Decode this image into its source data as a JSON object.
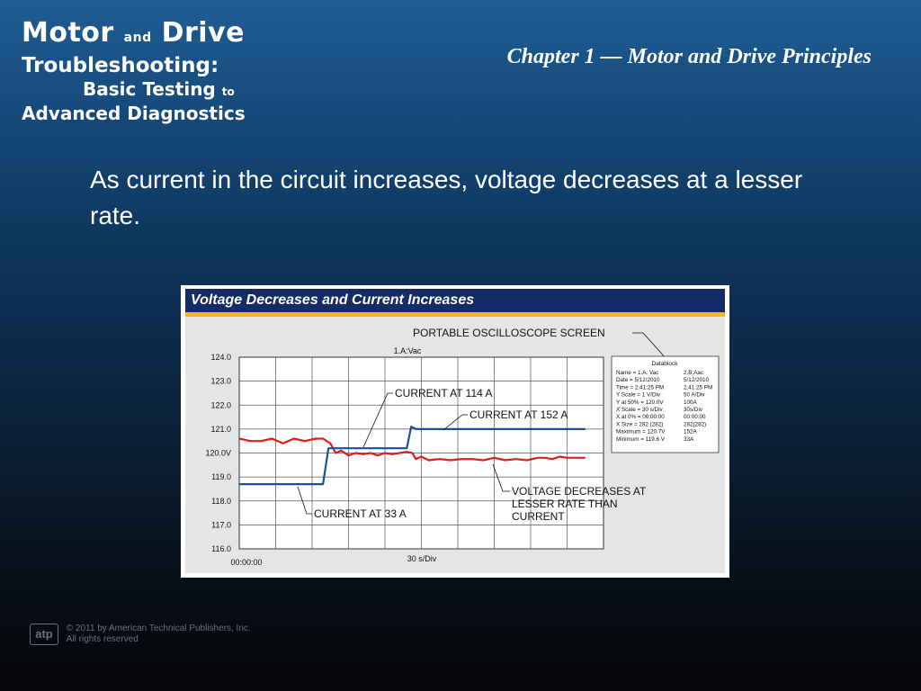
{
  "logo": {
    "line1_a": "Motor",
    "line1_and": "and",
    "line1_b": "Drive",
    "line2": "Troubleshooting:",
    "line3_a": "Basic Testing",
    "line3_to": "to",
    "line4": "Advanced Diagnostics"
  },
  "chapter_title": "Chapter 1 — Motor and Drive Principles",
  "body_text": "As current in the circuit increases, voltage decreases at a lesser rate.",
  "figure": {
    "header": "Voltage Decreases and Current Increases",
    "screen_label": "PORTABLE OSCILLOSCOPE SCREEN",
    "channel_label": "1.A:Vac",
    "time_label": "00:00:00",
    "xscale_label": "30 s/Div",
    "annotations": {
      "current_114": "CURRENT AT 114 A",
      "current_152": "CURRENT AT 152 A",
      "current_33": "CURRENT AT 33 A",
      "voltage_line1": "VOLTAGE DECREASES AT",
      "voltage_line2": "LESSER RATE THAN",
      "voltage_line3": "CURRENT"
    },
    "datablock": {
      "title": "Datablock",
      "rows": [
        [
          "Name = 1.A: Vac",
          "2.B:Aac"
        ],
        [
          "Date = 5/12/2010",
          "5/12/2010"
        ],
        [
          "Time = 2:41:25 PM",
          "2:41:25 PM"
        ],
        [
          "Y Scale = 1 V/Div",
          "50 A/Div"
        ],
        [
          "Y at 50% = 120.0V",
          "100A"
        ],
        [
          "X Scale = 30 s/Div",
          "30s/Div"
        ],
        [
          "X at 0% = 00:00:00",
          "00:00:00"
        ],
        [
          "X Size = 282 (282)",
          "282(282)"
        ],
        [
          "Maximum = 120.7V",
          "152A"
        ],
        [
          "Minimum = 119.6 V",
          "33A"
        ]
      ]
    }
  },
  "chart_data": {
    "type": "line",
    "title": "Voltage Decreases and Current Increases",
    "ylabel": "1.A:Vac",
    "xlabel": "30 s/Div",
    "ylim": [
      116.0,
      124.0
    ],
    "y_ticks": [
      "124.0",
      "123.0",
      "122.0",
      "121.0",
      "120.0V",
      "119.0",
      "118.0",
      "117.0",
      "116.0"
    ],
    "x_divisions": 10,
    "grid": true,
    "series": [
      {
        "name": "voltage",
        "color": "#dc1e1e",
        "points": [
          [
            0.0,
            120.6
          ],
          [
            0.3,
            120.5
          ],
          [
            0.6,
            120.5
          ],
          [
            0.9,
            120.6
          ],
          [
            1.2,
            120.4
          ],
          [
            1.5,
            120.6
          ],
          [
            1.8,
            120.5
          ],
          [
            2.1,
            120.6
          ],
          [
            2.3,
            120.6
          ],
          [
            2.5,
            120.4
          ],
          [
            2.65,
            120.0
          ],
          [
            2.8,
            120.1
          ],
          [
            3.0,
            119.9
          ],
          [
            3.2,
            120.0
          ],
          [
            3.4,
            119.95
          ],
          [
            3.6,
            120.0
          ],
          [
            3.8,
            119.9
          ],
          [
            4.0,
            120.0
          ],
          [
            4.2,
            119.95
          ],
          [
            4.4,
            120.0
          ],
          [
            4.6,
            120.05
          ],
          [
            4.75,
            120.0
          ],
          [
            4.85,
            119.75
          ],
          [
            5.0,
            119.85
          ],
          [
            5.2,
            119.7
          ],
          [
            5.5,
            119.75
          ],
          [
            5.8,
            119.7
          ],
          [
            6.1,
            119.75
          ],
          [
            6.4,
            119.75
          ],
          [
            6.7,
            119.7
          ],
          [
            7.0,
            119.8
          ],
          [
            7.3,
            119.7
          ],
          [
            7.6,
            119.75
          ],
          [
            7.9,
            119.7
          ],
          [
            8.2,
            119.8
          ],
          [
            8.4,
            119.8
          ],
          [
            8.6,
            119.75
          ],
          [
            8.8,
            119.85
          ],
          [
            9.0,
            119.8
          ],
          [
            9.3,
            119.8
          ],
          [
            9.5,
            119.8
          ]
        ]
      },
      {
        "name": "current",
        "color": "#1c4e9e",
        "points": [
          [
            0.0,
            118.7
          ],
          [
            2.3,
            118.7
          ],
          [
            2.45,
            120.2
          ],
          [
            4.6,
            120.2
          ],
          [
            4.72,
            121.1
          ],
          [
            4.85,
            121.0
          ],
          [
            9.5,
            121.0
          ]
        ]
      }
    ]
  }
}
